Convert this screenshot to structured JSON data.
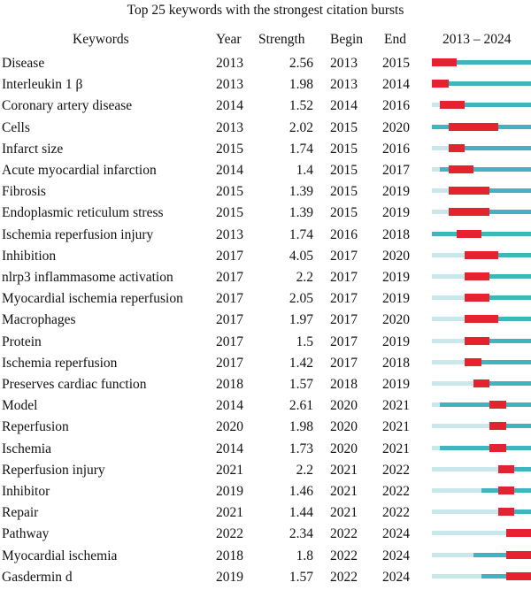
{
  "chart_data": {
    "type": "table",
    "title": "Top 25 keywords with the strongest citation bursts",
    "columns": [
      "Keywords",
      "Year",
      "Strength",
      "Begin",
      "End",
      "2013 – 2024"
    ],
    "timeline": [
      2013,
      2024
    ],
    "colors": {
      "pre": "#c9e8ec",
      "active": "#41b5bd",
      "burst": "#e5232f"
    },
    "rows": [
      {
        "keyword": "Disease",
        "year": "2013",
        "strength": "2.56",
        "begin": "2013",
        "end": "2015"
      },
      {
        "keyword": "Interleukin 1 β",
        "year": "2013",
        "strength": "1.98",
        "begin": "2013",
        "end": "2014"
      },
      {
        "keyword": "Coronary artery disease",
        "year": "2014",
        "strength": "1.52",
        "begin": "2014",
        "end": "2016"
      },
      {
        "keyword": "Cells",
        "year": "2013",
        "strength": "2.02",
        "begin": "2015",
        "end": "2020"
      },
      {
        "keyword": "Infarct size",
        "year": "2015",
        "strength": "1.74",
        "begin": "2015",
        "end": "2016"
      },
      {
        "keyword": "Acute myocardial infarction",
        "year": "2014",
        "strength": "1.4",
        "begin": "2015",
        "end": "2017"
      },
      {
        "keyword": "Fibrosis",
        "year": "2015",
        "strength": "1.39",
        "begin": "2015",
        "end": "2019"
      },
      {
        "keyword": "Endoplasmic reticulum stress",
        "year": "2015",
        "strength": "1.39",
        "begin": "2015",
        "end": "2019"
      },
      {
        "keyword": "Ischemia reperfusion injury",
        "year": "2013",
        "strength": "1.74",
        "begin": "2016",
        "end": "2018"
      },
      {
        "keyword": "Inhibition",
        "year": "2017",
        "strength": "4.05",
        "begin": "2017",
        "end": "2020"
      },
      {
        "keyword": "nlrp3 inflammasome activation",
        "year": "2017",
        "strength": "2.2",
        "begin": "2017",
        "end": "2019"
      },
      {
        "keyword": "Myocardial ischemia reperfusion",
        "year": "2017",
        "strength": "2.05",
        "begin": "2017",
        "end": "2019"
      },
      {
        "keyword": "Macrophages",
        "year": "2017",
        "strength": "1.97",
        "begin": "2017",
        "end": "2020"
      },
      {
        "keyword": "Protein",
        "year": "2017",
        "strength": "1.5",
        "begin": "2017",
        "end": "2019"
      },
      {
        "keyword": "Ischemia reperfusion",
        "year": "2017",
        "strength": "1.42",
        "begin": "2017",
        "end": "2018"
      },
      {
        "keyword": "Preserves cardiac function",
        "year": "2018",
        "strength": "1.57",
        "begin": "2018",
        "end": "2019"
      },
      {
        "keyword": "Model",
        "year": "2014",
        "strength": "2.61",
        "begin": "2020",
        "end": "2021"
      },
      {
        "keyword": "Reperfusion",
        "year": "2020",
        "strength": "1.98",
        "begin": "2020",
        "end": "2021"
      },
      {
        "keyword": "Ischemia",
        "year": "2014",
        "strength": "1.73",
        "begin": "2020",
        "end": "2021"
      },
      {
        "keyword": "Reperfusion injury",
        "year": "2021",
        "strength": "2.2",
        "begin": "2021",
        "end": "2022"
      },
      {
        "keyword": "Inhibitor",
        "year": "2019",
        "strength": "1.46",
        "begin": "2021",
        "end": "2022"
      },
      {
        "keyword": "Repair",
        "year": "2021",
        "strength": "1.44",
        "begin": "2021",
        "end": "2022"
      },
      {
        "keyword": "Pathway",
        "year": "2022",
        "strength": "2.34",
        "begin": "2022",
        "end": "2024"
      },
      {
        "keyword": "Myocardial ischemia",
        "year": "2018",
        "strength": "1.8",
        "begin": "2022",
        "end": "2024"
      },
      {
        "keyword": "Gasdermin d",
        "year": "2019",
        "strength": "1.57",
        "begin": "2022",
        "end": "2024"
      }
    ]
  }
}
